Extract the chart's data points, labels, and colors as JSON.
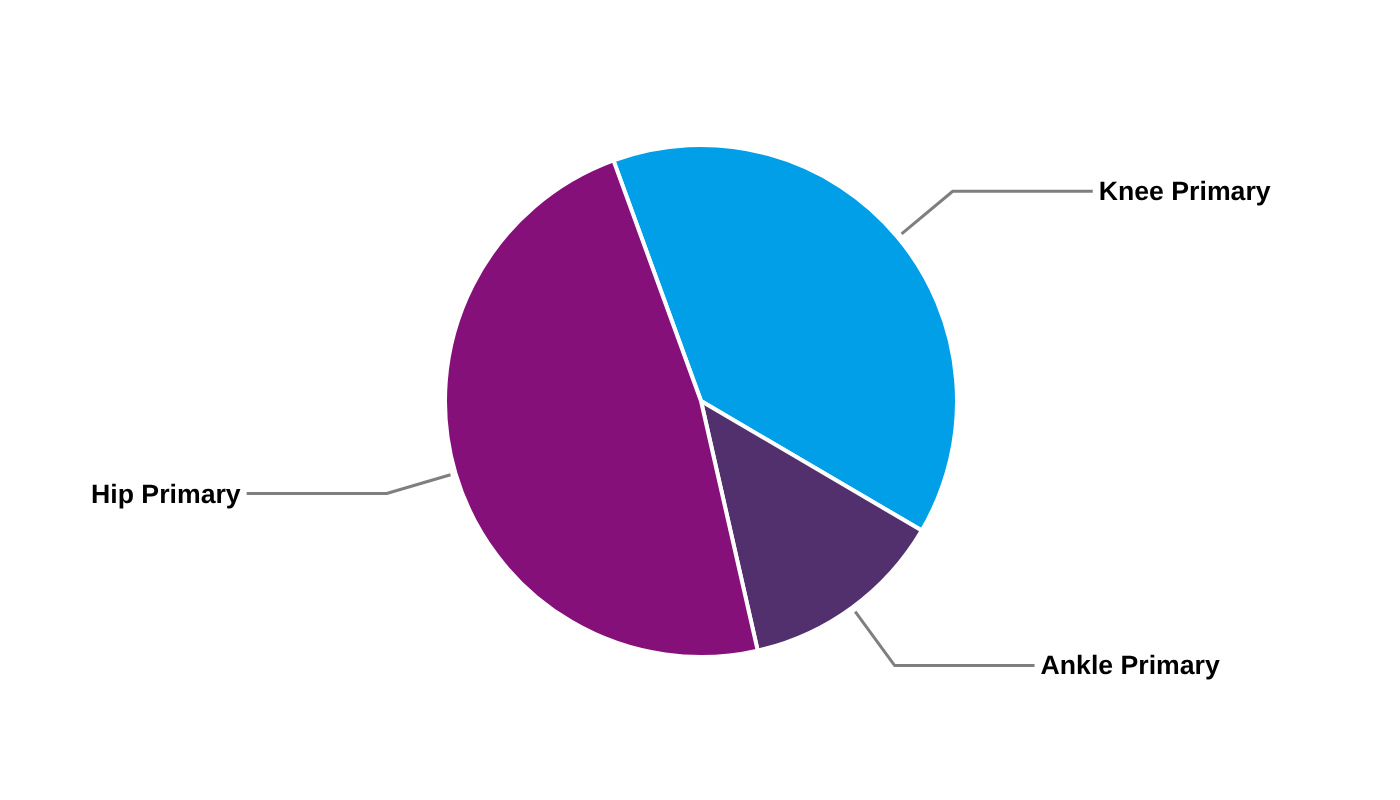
{
  "chart_data": {
    "type": "pie",
    "categories": [
      "Knee Primary",
      "Ankle Primary",
      "Hip Primary"
    ],
    "values": [
      39,
      13,
      48
    ],
    "colors": [
      "#009fe8",
      "#52306e",
      "#86107a"
    ]
  }
}
